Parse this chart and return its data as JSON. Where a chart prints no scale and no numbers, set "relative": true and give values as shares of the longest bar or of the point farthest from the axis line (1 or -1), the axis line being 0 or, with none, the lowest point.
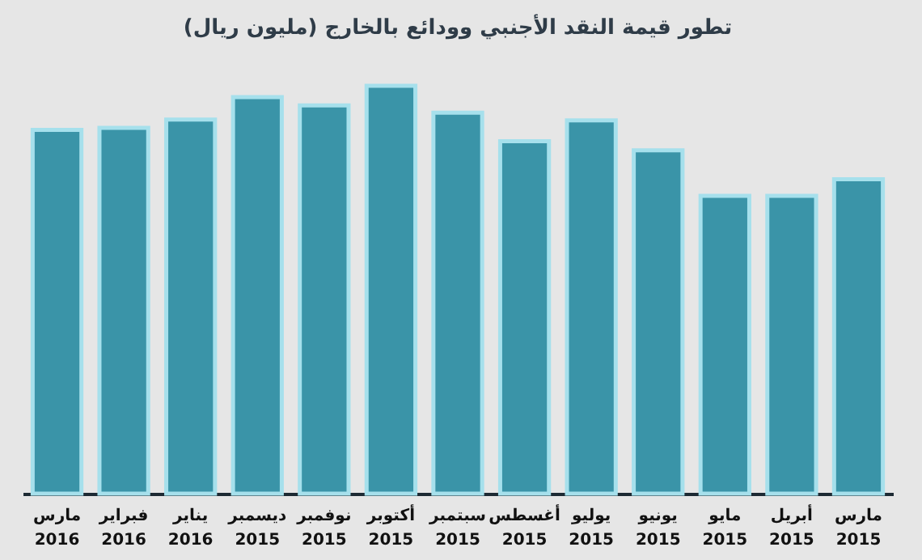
{
  "chart_data": {
    "type": "bar",
    "title": "تطور قيمة النقد الأجنبي وودائع بالخارج (مليون ريال)",
    "categories": [
      "مارس 2016",
      "فبراير 2016",
      "يناير 2016",
      "ديسمبر 2015",
      "نوفمبر 2015",
      "أكتوبر 2015",
      "سبتمبر 2015",
      "أغسطس 2015",
      "يوليو 2015",
      "يونيو 2015",
      "مايو 2015",
      "أبريل 2015",
      "مارس 2015"
    ],
    "values": [
      0.892,
      0.897,
      0.917,
      0.972,
      0.952,
      1,
      0.934,
      0.864,
      0.915,
      0.842,
      0.73,
      0.73,
      0.771
    ],
    "color": "#3a94a8",
    "relative": true
  }
}
